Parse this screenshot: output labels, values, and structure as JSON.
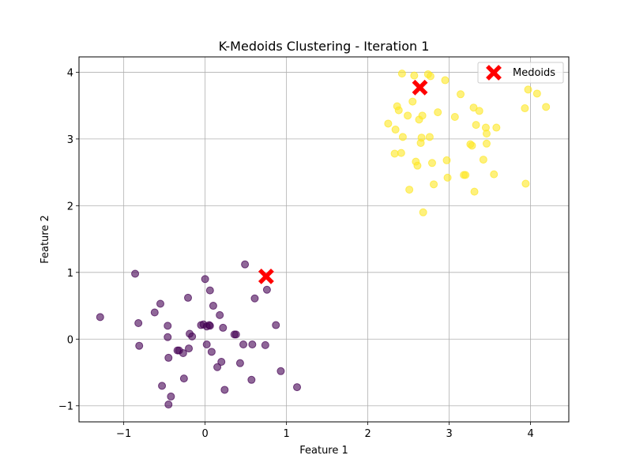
{
  "chart_data": {
    "type": "scatter",
    "title": "K-Medoids Clustering - Iteration 1",
    "xlabel": "Feature 1",
    "ylabel": "Feature 2",
    "xlim": [
      -1.55,
      4.47
    ],
    "ylim": [
      -1.24,
      4.23
    ],
    "xticks": [
      -1,
      0,
      1,
      2,
      3,
      4
    ],
    "yticks": [
      -1,
      0,
      1,
      2,
      3,
      4
    ],
    "xtick_labels": [
      "−1",
      "0",
      "1",
      "2",
      "3",
      "4"
    ],
    "ytick_labels": [
      "−1",
      "0",
      "1",
      "2",
      "3",
      "4"
    ],
    "grid": true,
    "legend_position": "top-right",
    "series": [
      {
        "color": "#440154",
        "points": [
          [
            -1.29,
            0.33
          ],
          [
            -0.86,
            0.98
          ],
          [
            -0.82,
            0.24
          ],
          [
            -0.81,
            -0.1
          ],
          [
            -0.62,
            0.4
          ],
          [
            -0.55,
            0.53
          ],
          [
            -0.53,
            -0.7
          ],
          [
            -0.46,
            0.2
          ],
          [
            -0.46,
            0.03
          ],
          [
            -0.45,
            -0.28
          ],
          [
            -0.45,
            -0.98
          ],
          [
            -0.42,
            -0.86
          ],
          [
            -0.34,
            -0.17
          ],
          [
            -0.32,
            -0.17
          ],
          [
            -0.27,
            -0.21
          ],
          [
            -0.26,
            -0.59
          ],
          [
            -0.21,
            0.62
          ],
          [
            -0.2,
            -0.14
          ],
          [
            -0.19,
            0.08
          ],
          [
            -0.16,
            0.04
          ],
          [
            -0.05,
            0.21
          ],
          [
            -0.02,
            0.22
          ],
          [
            0.0,
            0.9
          ],
          [
            0.02,
            -0.08
          ],
          [
            0.02,
            0.19
          ],
          [
            0.05,
            0.21
          ],
          [
            0.06,
            0.73
          ],
          [
            0.06,
            0.2
          ],
          [
            0.08,
            -0.19
          ],
          [
            0.1,
            0.5
          ],
          [
            0.15,
            -0.42
          ],
          [
            0.18,
            0.36
          ],
          [
            0.2,
            -0.34
          ],
          [
            0.22,
            0.17
          ],
          [
            0.24,
            -0.76
          ],
          [
            0.36,
            0.07
          ],
          [
            0.38,
            0.07
          ],
          [
            0.43,
            -0.36
          ],
          [
            0.47,
            -0.08
          ],
          [
            0.49,
            1.12
          ],
          [
            0.57,
            -0.61
          ],
          [
            0.58,
            -0.08
          ],
          [
            0.61,
            0.61
          ],
          [
            0.74,
            -0.09
          ],
          [
            0.76,
            0.74
          ],
          [
            0.87,
            0.21
          ],
          [
            0.93,
            -0.48
          ],
          [
            1.13,
            -0.72
          ]
        ]
      },
      {
        "color": "#fde725",
        "points": [
          [
            2.25,
            3.23
          ],
          [
            2.33,
            2.78
          ],
          [
            2.34,
            3.14
          ],
          [
            2.36,
            3.49
          ],
          [
            2.38,
            3.43
          ],
          [
            2.41,
            2.79
          ],
          [
            2.42,
            3.98
          ],
          [
            2.43,
            3.03
          ],
          [
            2.49,
            3.35
          ],
          [
            2.51,
            2.24
          ],
          [
            2.55,
            3.56
          ],
          [
            2.57,
            3.95
          ],
          [
            2.59,
            2.66
          ],
          [
            2.61,
            2.6
          ],
          [
            2.63,
            3.29
          ],
          [
            2.65,
            2.94
          ],
          [
            2.66,
            3.02
          ],
          [
            2.67,
            3.35
          ],
          [
            2.68,
            1.9
          ],
          [
            2.74,
            3.97
          ],
          [
            2.76,
            3.03
          ],
          [
            2.77,
            3.94
          ],
          [
            2.79,
            2.64
          ],
          [
            2.81,
            2.32
          ],
          [
            2.86,
            3.4
          ],
          [
            2.95,
            3.88
          ],
          [
            2.97,
            2.68
          ],
          [
            2.98,
            2.42
          ],
          [
            3.07,
            3.33
          ],
          [
            3.14,
            3.67
          ],
          [
            3.18,
            2.46
          ],
          [
            3.2,
            2.46
          ],
          [
            3.26,
            2.92
          ],
          [
            3.28,
            2.9
          ],
          [
            3.3,
            3.47
          ],
          [
            3.31,
            2.21
          ],
          [
            3.33,
            3.21
          ],
          [
            3.37,
            3.42
          ],
          [
            3.42,
            2.69
          ],
          [
            3.45,
            3.17
          ],
          [
            3.46,
            2.93
          ],
          [
            3.46,
            3.08
          ],
          [
            3.55,
            2.47
          ],
          [
            3.58,
            3.17
          ],
          [
            3.93,
            3.46
          ],
          [
            3.94,
            2.33
          ],
          [
            3.97,
            3.74
          ],
          [
            4.08,
            3.68
          ],
          [
            4.19,
            3.48
          ]
        ]
      }
    ],
    "medoids": {
      "name": "Medoids",
      "color": "#ff0000",
      "points": [
        [
          0.75,
          0.94
        ],
        [
          2.64,
          3.77
        ]
      ]
    }
  }
}
